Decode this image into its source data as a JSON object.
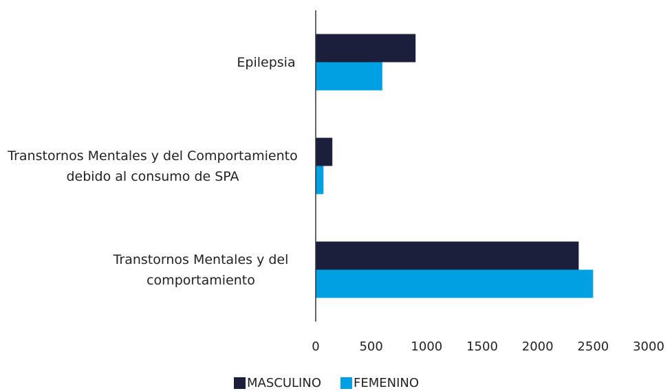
{
  "chart_data": {
    "type": "hbar",
    "categories": [
      "Epilepsia",
      "Transtornos Mentales y del Comportamiento debido al consumo de SPA",
      "Transtornos Mentales y del comportamiento"
    ],
    "series": [
      {
        "name": "MASCULINO",
        "color": "#1b1f3b",
        "values": [
          900,
          150,
          2370
        ]
      },
      {
        "name": "FEMENINO",
        "color": "#00a0e3",
        "values": [
          600,
          70,
          2500
        ]
      }
    ],
    "xlim": [
      0,
      3000
    ],
    "xticks": [
      0,
      500,
      1000,
      1500,
      2000,
      2500,
      3000
    ],
    "grid": false,
    "legend": "bottom"
  }
}
